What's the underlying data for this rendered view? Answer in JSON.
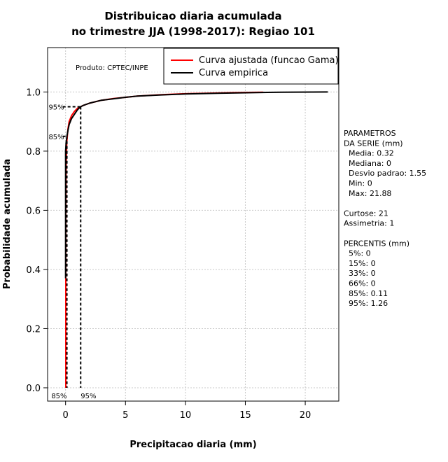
{
  "chart_data": {
    "type": "line",
    "title_line1": "Distribuicao diaria acumulada",
    "title_line2": "no trimestre JJA (1998-2017): Regiao 101",
    "xlabel": "Precipitacao diaria (mm)",
    "ylabel": "Probabilidade acumulada",
    "xlim": [
      -1.5,
      22.8
    ],
    "ylim": [
      -0.045,
      1.15
    ],
    "x_ticks": [
      0,
      5,
      10,
      15,
      20
    ],
    "x_tick_labels": [
      "0",
      "5",
      "10",
      "15",
      "20"
    ],
    "y_ticks": [
      0.0,
      0.2,
      0.4,
      0.6,
      0.8,
      1.0
    ],
    "y_tick_labels": [
      "0.0",
      "0.2",
      "0.4",
      "0.6",
      "0.8",
      "1.0"
    ],
    "grid": true,
    "legend_position": "top-right",
    "product_label": "Produto: CPTEC/INPE",
    "series": [
      {
        "name": "Curva ajustada (funcao Gama)",
        "color": "#ff0000",
        "x": [
          0.02,
          0.02,
          0.05,
          0.1,
          0.2,
          0.3,
          0.5,
          0.75,
          1.0,
          1.5,
          2.0,
          3.0,
          4.0,
          5.0,
          6.0,
          8.0,
          10.0,
          12.0,
          14.0,
          16.5
        ],
        "y": [
          0.0,
          0.6,
          0.75,
          0.83,
          0.875,
          0.9,
          0.92,
          0.935,
          0.945,
          0.955,
          0.962,
          0.972,
          0.978,
          0.982,
          0.986,
          0.991,
          0.994,
          0.996,
          0.998,
          0.999
        ]
      },
      {
        "name": "Curva empirica",
        "color": "#000000",
        "x": [
          0.0,
          0.0,
          0.0,
          0.05,
          0.11,
          0.2,
          0.3,
          0.5,
          0.75,
          1.0,
          1.26,
          1.5,
          2.0,
          3.0,
          4.0,
          5.0,
          6.0,
          8.0,
          10.0,
          13.0,
          16.0,
          18.0,
          21.88
        ],
        "y": [
          0.37,
          0.77,
          0.8,
          0.83,
          0.85,
          0.87,
          0.89,
          0.91,
          0.925,
          0.94,
          0.95,
          0.955,
          0.962,
          0.972,
          0.977,
          0.982,
          0.986,
          0.99,
          0.993,
          0.996,
          0.998,
          0.999,
          1.0
        ]
      }
    ],
    "percentile_markers": [
      {
        "label": "85%",
        "p": 0.85,
        "x": 0.11
      },
      {
        "label": "95%",
        "p": 0.95,
        "x": 1.26
      }
    ],
    "side_panel": [
      "PARAMETROS",
      "DA SERIE (mm)",
      "  Media: 0.32",
      "  Mediana: 0",
      "  Desvio padrao: 1.55",
      "  Min: 0",
      "  Max: 21.88",
      "",
      "Curtose: 21",
      "Assimetria: 1",
      "",
      "PERCENTIS (mm)",
      "  5%: 0",
      "  15%: 0",
      "  33%: 0",
      "  66%: 0",
      "  85%: 0.11",
      "  95%: 1.26"
    ]
  }
}
